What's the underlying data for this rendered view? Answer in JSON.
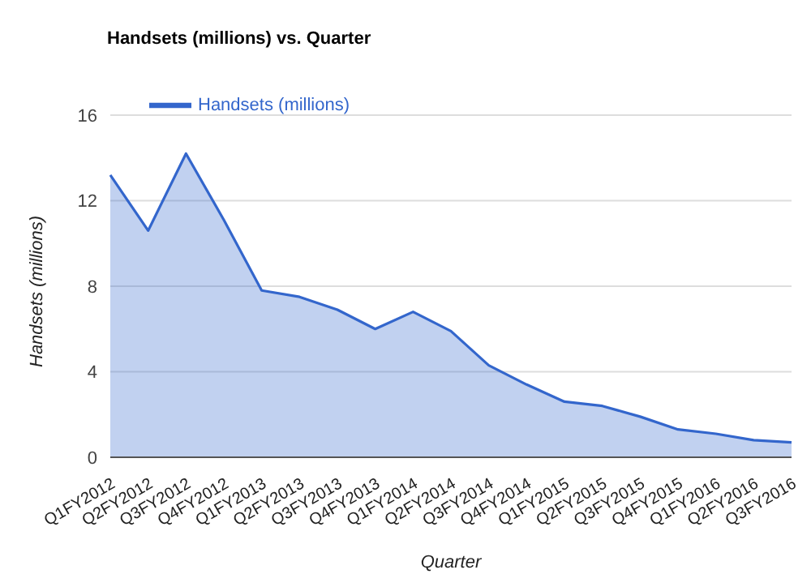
{
  "chart_data": {
    "type": "area",
    "title": "Handsets (millions) vs. Quarter",
    "xlabel": "Quarter",
    "ylabel": "Handsets (millions)",
    "categories": [
      "Q1FY2012",
      "Q2FY2012",
      "Q3FY2012",
      "Q4FY2012",
      "Q1FY2013",
      "Q2FY2013",
      "Q3FY2013",
      "Q4FY2013",
      "Q1FY2014",
      "Q2FY2014",
      "Q3FY2014",
      "Q4FY2014",
      "Q1FY2015",
      "Q2FY2015",
      "Q3FY2015",
      "Q4FY2015",
      "Q1FY2016",
      "Q2FY2016",
      "Q3FY2016"
    ],
    "series": [
      {
        "name": "Handsets (millions)",
        "color": "#3366cc",
        "values": [
          13.2,
          10.6,
          14.2,
          11.1,
          7.8,
          7.5,
          6.9,
          6.0,
          6.8,
          5.9,
          4.3,
          3.4,
          2.6,
          2.4,
          1.9,
          1.3,
          1.1,
          0.8,
          0.7
        ]
      }
    ],
    "ylim": [
      0,
      16
    ],
    "yticks": [
      0,
      4,
      8,
      12,
      16
    ],
    "grid": "y",
    "legend": "top left",
    "marker": "none",
    "line_style": "solid"
  }
}
